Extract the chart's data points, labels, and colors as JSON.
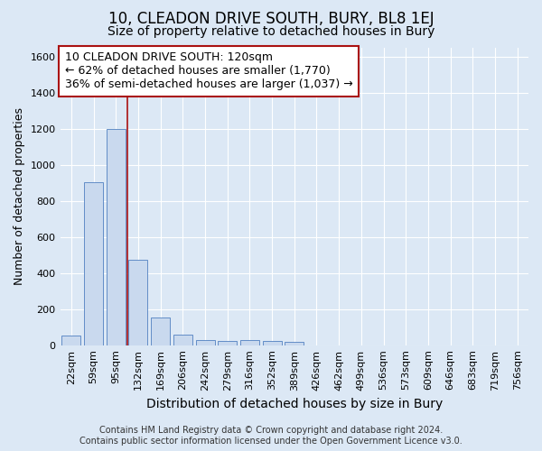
{
  "title": "10, CLEADON DRIVE SOUTH, BURY, BL8 1EJ",
  "subtitle": "Size of property relative to detached houses in Bury",
  "xlabel": "Distribution of detached houses by size in Bury",
  "ylabel": "Number of detached properties",
  "footer_line1": "Contains HM Land Registry data © Crown copyright and database right 2024.",
  "footer_line2": "Contains public sector information licensed under the Open Government Licence v3.0.",
  "categories": [
    "22sqm",
    "59sqm",
    "95sqm",
    "132sqm",
    "169sqm",
    "206sqm",
    "242sqm",
    "279sqm",
    "316sqm",
    "352sqm",
    "389sqm",
    "426sqm",
    "462sqm",
    "499sqm",
    "536sqm",
    "573sqm",
    "609sqm",
    "646sqm",
    "683sqm",
    "719sqm",
    "756sqm"
  ],
  "bar_values": [
    55,
    905,
    1200,
    475,
    152,
    58,
    28,
    22,
    30,
    25,
    20,
    0,
    0,
    0,
    0,
    0,
    0,
    0,
    0,
    0,
    0
  ],
  "bar_color": "#c9d9ee",
  "bar_edge_color": "#5080c0",
  "property_line_x": 2.5,
  "property_line_color": "#aa1111",
  "annotation_text": "10 CLEADON DRIVE SOUTH: 120sqm\n← 62% of detached houses are smaller (1,770)\n36% of semi-detached houses are larger (1,037) →",
  "annotation_box_facecolor": "white",
  "annotation_box_edgecolor": "#aa1111",
  "ylim": [
    0,
    1650
  ],
  "yticks": [
    0,
    200,
    400,
    600,
    800,
    1000,
    1200,
    1400,
    1600
  ],
  "bg_color": "#dce8f5",
  "grid_color": "#ffffff",
  "title_fontsize": 12,
  "subtitle_fontsize": 10,
  "xlabel_fontsize": 10,
  "ylabel_fontsize": 9,
  "tick_fontsize": 8,
  "annotation_fontsize": 9,
  "footer_fontsize": 7
}
